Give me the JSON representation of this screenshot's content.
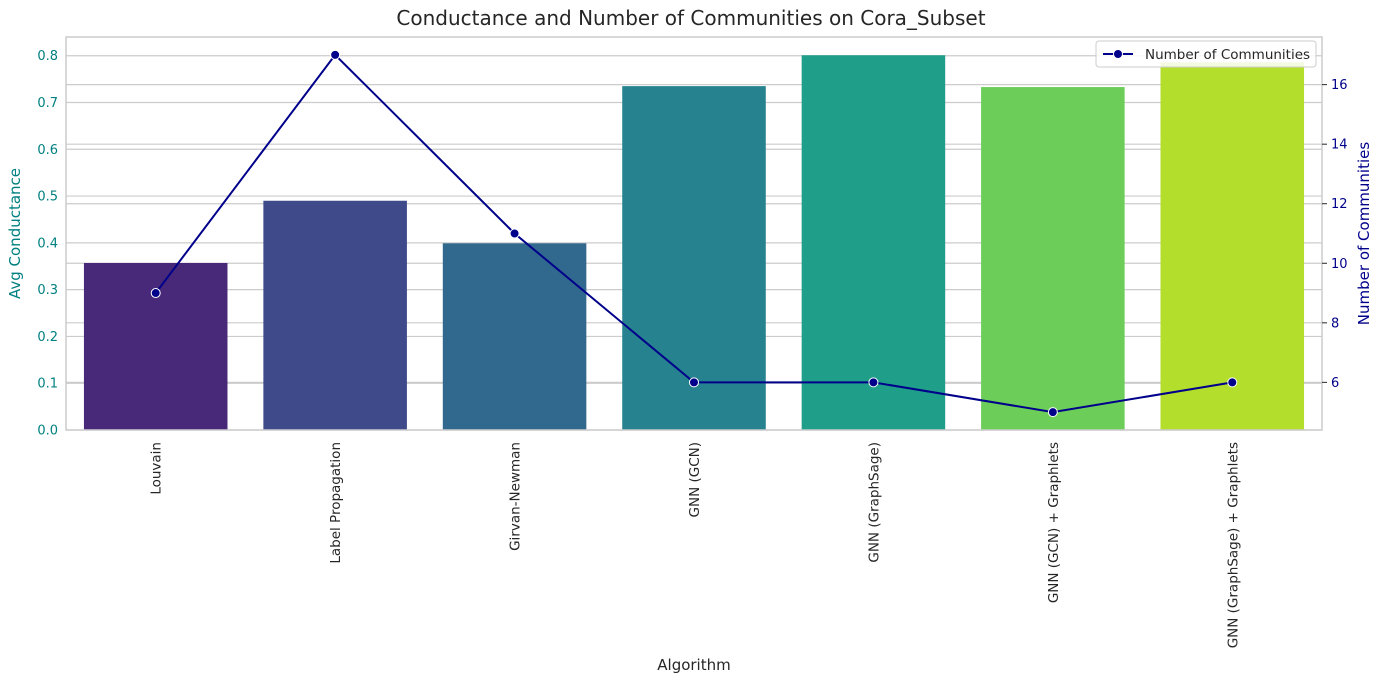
{
  "chart_data": {
    "type": "bar",
    "title": "Conductance and Number of Communities on Cora_Subset",
    "xlabel": "Algorithm",
    "categories": [
      "Louvain",
      "Label Propagation",
      "Girvan-Newman",
      "GNN (GCN)",
      "GNN (GraphSage)",
      "GNN (GCN) + Graphlets",
      "GNN (GraphSage) + Graphlets"
    ],
    "bars": {
      "ylabel": "Avg Conductance",
      "values": [
        0.357,
        0.49,
        0.399,
        0.735,
        0.801,
        0.733,
        0.786
      ],
      "colors": [
        "#482878",
        "#3e4a89",
        "#31688e",
        "#26828e",
        "#1f9e89",
        "#6cce59",
        "#b4de2c"
      ],
      "ylim": [
        0,
        0.84
      ],
      "yticks": [
        0.0,
        0.1,
        0.2,
        0.3,
        0.4,
        0.5,
        0.6,
        0.7,
        0.8
      ],
      "axis_color": "#008080"
    },
    "line": {
      "name": "Number of Communities",
      "ylabel": "Number of Communities",
      "values": [
        9,
        17,
        11,
        6,
        6,
        5,
        6
      ],
      "ylim": [
        4.4,
        17.6
      ],
      "yticks": [
        6,
        8,
        10,
        12,
        14,
        16
      ],
      "color": "#00008b"
    },
    "grid": true,
    "legend": "top-right"
  }
}
